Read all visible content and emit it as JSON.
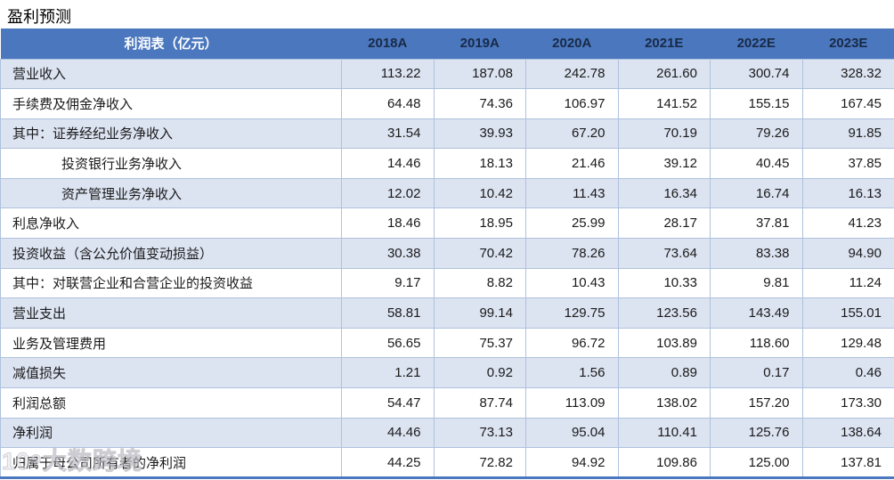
{
  "page": {
    "title": "盈利预测"
  },
  "watermark": {
    "text": "10⁹大数跨境"
  },
  "colors": {
    "header_bg": "#4A77BE",
    "alt_row_bg": "#DCE3F1",
    "grid_border": "#AFC2DE",
    "year_text": "#192A47",
    "body_text": "#1a1a1a",
    "bottom_border": "#4A77BE"
  },
  "table": {
    "header_label": "利润表（亿元）",
    "years": [
      "2018A",
      "2019A",
      "2020A",
      "2021E",
      "2022E",
      "2023E"
    ],
    "rows": [
      {
        "label": "营业收入",
        "indent": 0,
        "values": [
          "113.22",
          "187.08",
          "242.78",
          "261.60",
          "300.74",
          "328.32"
        ]
      },
      {
        "label": "手续费及佣金净收入",
        "indent": 0,
        "values": [
          "64.48",
          "74.36",
          "106.97",
          "141.52",
          "155.15",
          "167.45"
        ]
      },
      {
        "label": "其中：证券经纪业务净收入",
        "indent": 0,
        "values": [
          "31.54",
          "39.93",
          "67.20",
          "70.19",
          "79.26",
          "91.85"
        ]
      },
      {
        "label": "投资银行业务净收入",
        "indent": 1,
        "values": [
          "14.46",
          "18.13",
          "21.46",
          "39.12",
          "40.45",
          "37.85"
        ]
      },
      {
        "label": "资产管理业务净收入",
        "indent": 1,
        "values": [
          "12.02",
          "10.42",
          "11.43",
          "16.34",
          "16.74",
          "16.13"
        ]
      },
      {
        "label": "利息净收入",
        "indent": 0,
        "values": [
          "18.46",
          "18.95",
          "25.99",
          "28.17",
          "37.81",
          "41.23"
        ]
      },
      {
        "label": "投资收益（含公允价值变动损益）",
        "indent": 0,
        "values": [
          "30.38",
          "70.42",
          "78.26",
          "73.64",
          "83.38",
          "94.90"
        ]
      },
      {
        "label": "其中：对联营企业和合营企业的投资收益",
        "indent": 0,
        "values": [
          "9.17",
          "8.82",
          "10.43",
          "10.33",
          "9.81",
          "11.24"
        ]
      },
      {
        "label": "营业支出",
        "indent": 0,
        "values": [
          "58.81",
          "99.14",
          "129.75",
          "123.56",
          "143.49",
          "155.01"
        ]
      },
      {
        "label": "业务及管理费用",
        "indent": 0,
        "values": [
          "56.65",
          "75.37",
          "96.72",
          "103.89",
          "118.60",
          "129.48"
        ]
      },
      {
        "label": "减值损失",
        "indent": 0,
        "values": [
          "1.21",
          "0.92",
          "1.56",
          "0.89",
          "0.17",
          "0.46"
        ]
      },
      {
        "label": "利润总额",
        "indent": 0,
        "values": [
          "54.47",
          "87.74",
          "113.09",
          "138.02",
          "157.20",
          "173.30"
        ]
      },
      {
        "label": "净利润",
        "indent": 0,
        "values": [
          "44.46",
          "73.13",
          "95.04",
          "110.41",
          "125.76",
          "138.64"
        ]
      },
      {
        "label": "归属于母公司所有者的净利润",
        "indent": 0,
        "values": [
          "44.25",
          "72.82",
          "94.92",
          "109.86",
          "125.00",
          "137.81"
        ]
      }
    ]
  }
}
